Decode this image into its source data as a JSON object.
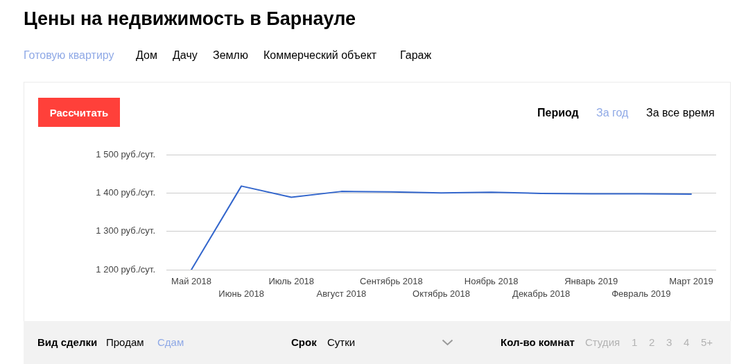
{
  "chart_data": {
    "type": "line",
    "title": "Цены на недвижимость в Барнауле",
    "categories": [
      "Май 2018",
      "Июнь 2018",
      "Июль 2018",
      "Август 2018",
      "Сентябрь 2018",
      "Октябрь 2018",
      "Ноябрь 2018",
      "Декабрь 2018",
      "Январь 2019",
      "Февраль 2019",
      "Март 2019"
    ],
    "series": [
      {
        "color": "#3366cc",
        "values": [
          1200,
          1418,
          1389,
          1404,
          1403,
          1400,
          1402,
          1399,
          1398,
          1398,
          1397
        ]
      }
    ],
    "ylim": [
      1200,
      1500
    ],
    "yticks": [
      {
        "value": 1200,
        "label": "1 200 руб./сут."
      },
      {
        "value": 1300,
        "label": "1 300 руб./сут."
      },
      {
        "value": 1400,
        "label": "1 400 руб./сут."
      },
      {
        "value": 1500,
        "label": "1 500 руб./сут."
      }
    ],
    "grid": "y",
    "marker": "none",
    "line_style": "solid",
    "annotations": [
      "Готовую квартиру",
      "Дом",
      "Дачу",
      "Землю",
      "Коммерческий объект",
      "Гараж",
      "Рассчитать",
      "Период",
      "За год",
      "За все время",
      "Вид сделки",
      "Продам",
      "Сдам",
      "Срок",
      "Сутки",
      "Кол-во комнат",
      "Студия",
      "1",
      "2",
      "3",
      "4",
      "5+"
    ]
  }
}
